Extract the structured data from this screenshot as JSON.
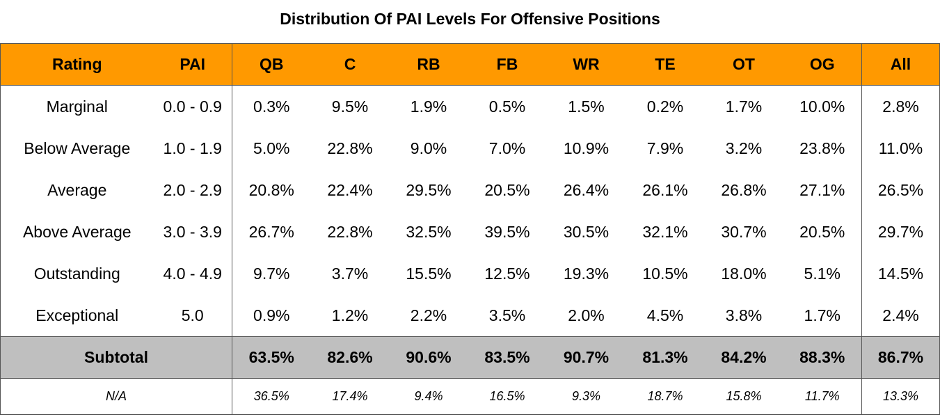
{
  "title": "Distribution Of PAI Levels For Offensive Positions",
  "table": {
    "header": [
      "Rating",
      "PAI",
      "QB",
      "C",
      "RB",
      "FB",
      "WR",
      "TE",
      "OT",
      "OG",
      "All"
    ],
    "rows": [
      [
        "Marginal",
        "0.0 - 0.9",
        "0.3%",
        "9.5%",
        "1.9%",
        "0.5%",
        "1.5%",
        "0.2%",
        "1.7%",
        "10.0%",
        "2.8%"
      ],
      [
        "Below Average",
        "1.0 - 1.9",
        "5.0%",
        "22.8%",
        "9.0%",
        "7.0%",
        "10.9%",
        "7.9%",
        "3.2%",
        "23.8%",
        "11.0%"
      ],
      [
        "Average",
        "2.0 - 2.9",
        "20.8%",
        "22.4%",
        "29.5%",
        "20.5%",
        "26.4%",
        "26.1%",
        "26.8%",
        "27.1%",
        "26.5%"
      ],
      [
        "Above Average",
        "3.0 - 3.9",
        "26.7%",
        "22.8%",
        "32.5%",
        "39.5%",
        "30.5%",
        "32.1%",
        "30.7%",
        "20.5%",
        "29.7%"
      ],
      [
        "Outstanding",
        "4.0 - 4.9",
        "9.7%",
        "3.7%",
        "15.5%",
        "12.5%",
        "19.3%",
        "10.5%",
        "18.0%",
        "5.1%",
        "14.5%"
      ],
      [
        "Exceptional",
        "5.0",
        "0.9%",
        "1.2%",
        "2.2%",
        "3.5%",
        "2.0%",
        "4.5%",
        "3.8%",
        "1.7%",
        "2.4%"
      ]
    ],
    "subtotal": [
      "Subtotal",
      "63.5%",
      "82.6%",
      "90.6%",
      "83.5%",
      "90.7%",
      "81.3%",
      "84.2%",
      "88.3%",
      "86.7%"
    ],
    "na": [
      "N/A",
      "36.5%",
      "17.4%",
      "9.4%",
      "16.5%",
      "9.3%",
      "18.7%",
      "15.8%",
      "11.7%",
      "13.3%"
    ]
  }
}
